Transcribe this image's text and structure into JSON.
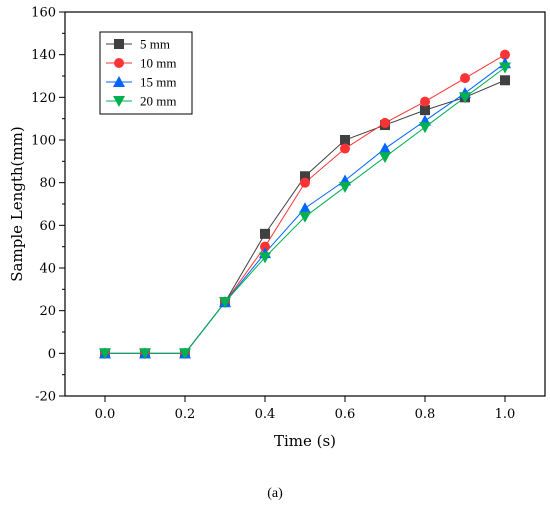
{
  "chart_data": {
    "type": "line",
    "title": "",
    "xlabel": "Time (s)",
    "ylabel": "Sample Length(mm)",
    "xlim": [
      -0.1,
      1.1
    ],
    "ylim": [
      -20,
      160
    ],
    "x_ticks": [
      0.0,
      0.2,
      0.4,
      0.6,
      0.8,
      1.0
    ],
    "x_tick_labels": [
      "0.0",
      "0.2",
      "0.4",
      "0.6",
      "0.8",
      "1.0"
    ],
    "y_ticks": [
      -20,
      0,
      20,
      40,
      60,
      80,
      100,
      120,
      140,
      160
    ],
    "y_tick_labels": [
      "-20",
      "0",
      "20",
      "40",
      "60",
      "80",
      "100",
      "120",
      "140",
      "160"
    ],
    "grid": false,
    "legend_position": "top-left",
    "x": [
      0.0,
      0.1,
      0.2,
      0.3,
      0.4,
      0.5,
      0.6,
      0.7,
      0.8,
      0.9,
      1.0
    ],
    "series": [
      {
        "name": "5 mm",
        "color": "#404040",
        "marker": "square",
        "values": [
          0,
          0,
          0,
          24,
          56,
          83,
          100,
          107,
          114,
          120,
          128
        ]
      },
      {
        "name": "10 mm",
        "color": "#ff3333",
        "marker": "circle",
        "values": [
          0,
          0,
          0,
          24,
          50,
          80,
          96,
          108,
          118,
          129,
          140
        ]
      },
      {
        "name": "15 mm",
        "color": "#0066ff",
        "marker": "triangle-up",
        "values": [
          0,
          0,
          0,
          24,
          47,
          68,
          81,
          96,
          109,
          122,
          136
        ]
      },
      {
        "name": "20 mm",
        "color": "#00b050",
        "marker": "triangle-down",
        "values": [
          0,
          0,
          0,
          24,
          45,
          64,
          78,
          92,
          106,
          120,
          134
        ]
      }
    ]
  },
  "caption": "(a)"
}
